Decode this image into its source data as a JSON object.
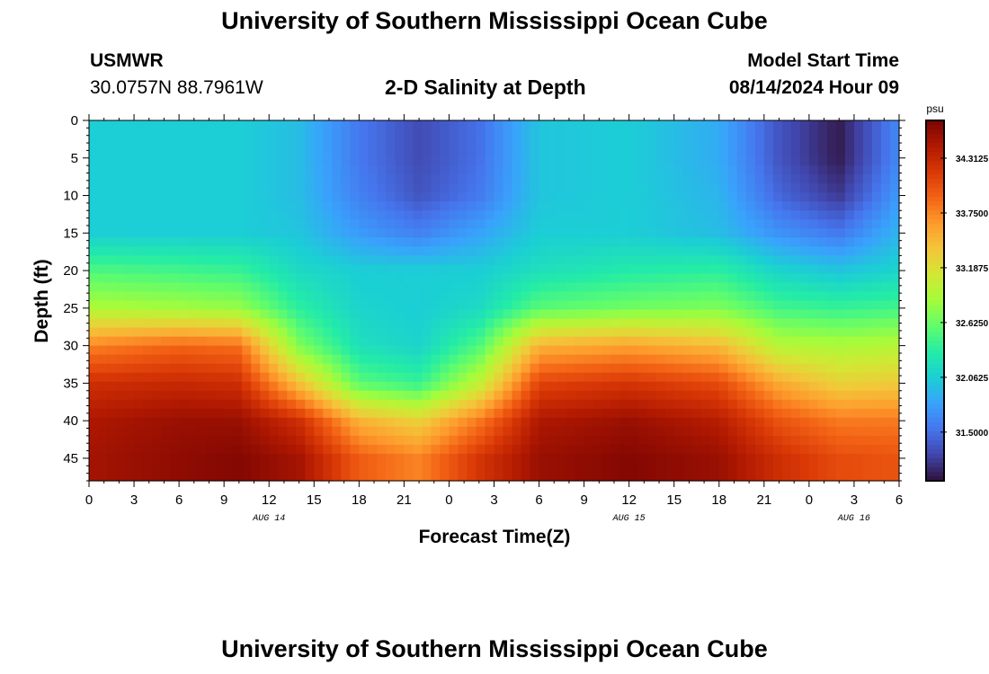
{
  "header": {
    "title": "University of Southern Mississippi Ocean Cube",
    "station": "USMWR",
    "coords": "30.0757N  88.7961W",
    "chart_title": "2-D Salinity at Depth",
    "model_label": "Model Start Time",
    "model_time": "08/14/2024 Hour 09"
  },
  "footer": {
    "title": "University of Southern Mississippi Ocean Cube"
  },
  "chart_data": {
    "type": "heatmap",
    "title": "2-D Salinity at Depth",
    "xlabel": "Forecast Time(Z)",
    "ylabel": "Depth (ft)",
    "x_ticks": [
      "0",
      "3",
      "6",
      "9",
      "12",
      "15",
      "18",
      "21",
      "0",
      "3",
      "6",
      "9",
      "12",
      "15",
      "18",
      "21",
      "0",
      "3",
      "6"
    ],
    "x_range_hours": [
      0,
      54
    ],
    "date_labels": [
      {
        "label": "AUG 14",
        "hour": 12
      },
      {
        "label": "AUG 15",
        "hour": 36
      },
      {
        "label": "AUG 16",
        "hour": 51
      }
    ],
    "y_ticks": [
      0,
      5,
      10,
      15,
      20,
      25,
      30,
      35,
      40,
      45
    ],
    "y_range_ft": [
      0,
      48
    ],
    "colorbar": {
      "unit": "psu",
      "labels": [
        "34.3125",
        "33.7500",
        "33.1875",
        "32.6250",
        "32.0625",
        "31.5000"
      ],
      "range": [
        31.0,
        34.7
      ],
      "colors": [
        "#30123b",
        "#4145ab",
        "#4675ed",
        "#39a2fc",
        "#1bcfd4",
        "#24eca6",
        "#61fc6c",
        "#a4fc3b",
        "#d1e834",
        "#f3c63a",
        "#fe9b2d",
        "#f36315",
        "#d93806",
        "#b11901",
        "#7a0403"
      ]
    },
    "depth_profile_ft": [
      0,
      5,
      10,
      15,
      20,
      25,
      30,
      35,
      40,
      45,
      48
    ],
    "time_profile_hours": [
      0,
      6,
      10,
      14,
      18,
      22,
      26,
      30,
      36,
      42,
      46,
      50,
      54
    ],
    "salinity_psu": [
      [
        32.05,
        32.05,
        32.05,
        31.95,
        31.55,
        31.3,
        31.5,
        32.0,
        32.05,
        31.85,
        31.35,
        31.05,
        31.65
      ],
      [
        32.05,
        32.05,
        32.05,
        31.95,
        31.55,
        31.3,
        31.5,
        32.0,
        32.05,
        31.85,
        31.35,
        31.05,
        31.65
      ],
      [
        32.05,
        32.05,
        32.05,
        31.95,
        31.6,
        31.35,
        31.55,
        32.0,
        32.05,
        31.9,
        31.45,
        31.2,
        31.75
      ],
      [
        32.05,
        32.05,
        32.05,
        32.0,
        31.75,
        31.6,
        31.8,
        32.05,
        32.05,
        31.95,
        31.7,
        31.55,
        31.9
      ],
      [
        32.5,
        32.45,
        32.4,
        32.15,
        32.05,
        32.05,
        32.05,
        32.2,
        32.3,
        32.35,
        32.1,
        32.0,
        32.1
      ],
      [
        32.9,
        32.85,
        32.8,
        32.35,
        32.1,
        32.05,
        32.15,
        32.55,
        32.65,
        32.7,
        32.45,
        32.4,
        32.45
      ],
      [
        33.75,
        33.9,
        33.85,
        32.7,
        32.2,
        32.1,
        32.5,
        33.5,
        33.6,
        33.45,
        32.95,
        32.9,
        32.95
      ],
      [
        34.25,
        34.3,
        34.25,
        33.4,
        32.55,
        32.4,
        33.0,
        34.1,
        34.2,
        34.05,
        33.55,
        33.3,
        33.35
      ],
      [
        34.45,
        34.55,
        34.55,
        34.25,
        33.5,
        33.3,
        33.8,
        34.45,
        34.55,
        34.4,
        34.0,
        33.8,
        33.8
      ],
      [
        34.5,
        34.6,
        34.65,
        34.5,
        33.95,
        33.75,
        34.2,
        34.55,
        34.65,
        34.55,
        34.25,
        34.05,
        34.0
      ],
      [
        34.5,
        34.6,
        34.65,
        34.5,
        33.95,
        33.75,
        34.2,
        34.55,
        34.65,
        34.55,
        34.25,
        34.05,
        34.0
      ]
    ]
  }
}
